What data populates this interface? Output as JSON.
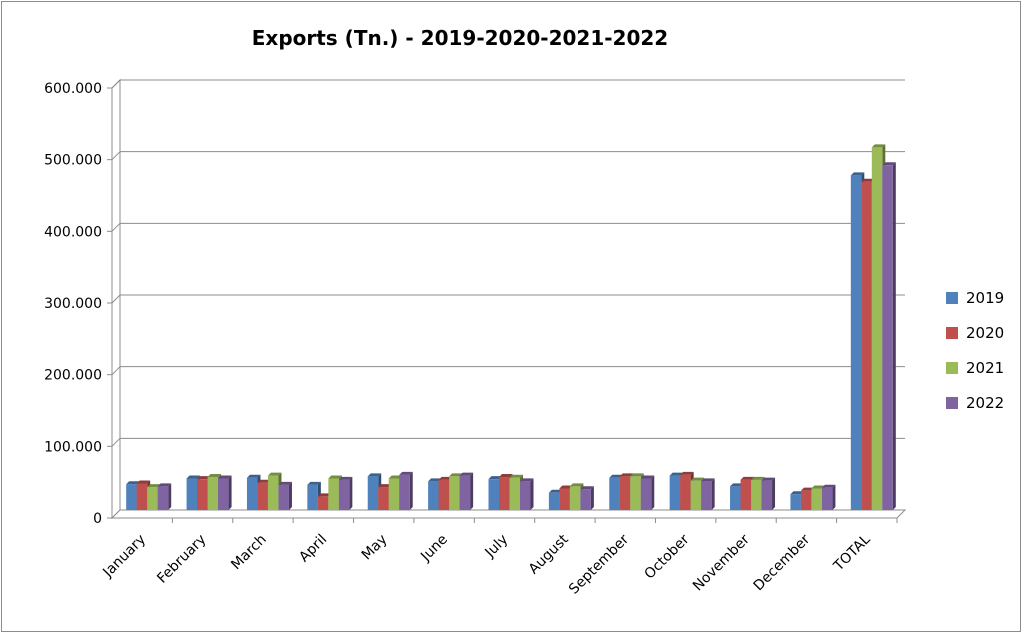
{
  "chart_data": {
    "type": "bar",
    "title": "Exports (Tn.) - 2019-2020-2021-2022",
    "xlabel": "",
    "ylabel": "",
    "ylim": [
      0,
      600000
    ],
    "y_ticks": [
      "0",
      "100.000",
      "200.000",
      "300.000",
      "400.000",
      "500.000",
      "600.000"
    ],
    "categories": [
      "January",
      "February",
      "March",
      "April",
      "May",
      "June",
      "July",
      "August",
      "September",
      "October",
      "November",
      "December",
      "TOTAL"
    ],
    "series": [
      {
        "name": "2019",
        "color": "#4f81bd",
        "values": [
          36000,
          44000,
          45000,
          35000,
          47000,
          40000,
          43000,
          24000,
          45000,
          48000,
          33000,
          22000,
          467000
        ]
      },
      {
        "name": "2020",
        "color": "#c0504d",
        "values": [
          37000,
          43000,
          38000,
          19000,
          32000,
          42000,
          46000,
          30000,
          47000,
          49000,
          42000,
          27000,
          458000
        ]
      },
      {
        "name": "2021",
        "color": "#9bbb59",
        "values": [
          32000,
          46000,
          48000,
          44000,
          44000,
          47000,
          45000,
          33000,
          47000,
          41000,
          42000,
          30000,
          506000
        ]
      },
      {
        "name": "2022",
        "color": "#8064a2",
        "values": [
          33000,
          44000,
          35000,
          42000,
          49000,
          48000,
          40000,
          29000,
          44000,
          40000,
          41000,
          31000,
          481000
        ]
      }
    ],
    "grid": true,
    "legend": "right"
  }
}
